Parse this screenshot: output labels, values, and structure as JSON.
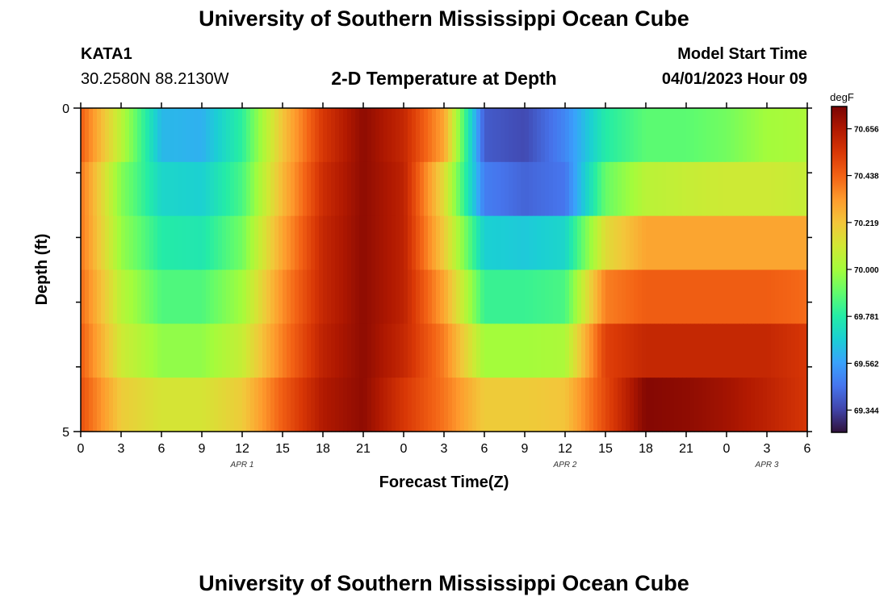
{
  "header": {
    "title": "University of Southern Mississippi Ocean Cube",
    "station": "KATA1",
    "coords": "30.2580N  88.2130W",
    "chart_title": "2-D Temperature at Depth",
    "model_start_label": "Model Start Time",
    "model_start_value": "04/01/2023 Hour 09"
  },
  "footer": {
    "title": "University of Southern Mississippi Ocean Cube"
  },
  "colorbar": {
    "unit": "degF",
    "ticks": [
      "70.656",
      "70.438",
      "70.219",
      "70.000",
      "69.781",
      "69.562",
      "69.344"
    ],
    "colors": [
      "#30123b",
      "#4145ab",
      "#4675ed",
      "#39a2fc",
      "#1bcfd4",
      "#24eca6",
      "#61fc6c",
      "#a4fc3b",
      "#d1e834",
      "#f3c63a",
      "#fe9b2d",
      "#f36315",
      "#d93806",
      "#b11901",
      "#7a0403"
    ]
  },
  "chart_data": {
    "type": "heatmap",
    "xlabel": "Forecast Time(Z)",
    "ylabel": "Depth (ft)",
    "x_tick_labels": [
      "0",
      "3",
      "6",
      "9",
      "12",
      "15",
      "18",
      "21",
      "0",
      "3",
      "6",
      "9",
      "12",
      "15",
      "18",
      "21",
      "0",
      "3",
      "6"
    ],
    "date_labels": [
      {
        "label": "APR 1",
        "hour": 12
      },
      {
        "label": "APR 2",
        "hour": 36
      },
      {
        "label": "APR 3",
        "hour": 51
      }
    ],
    "y_tick_labels": [
      "0",
      "5"
    ],
    "ylim": [
      0,
      5
    ],
    "value_range": [
      69.24,
      70.76
    ],
    "x_hours": [
      0,
      3,
      6,
      9,
      12,
      15,
      18,
      21,
      24,
      27,
      30,
      33,
      36,
      39,
      42,
      45,
      48,
      51,
      54
    ],
    "depth_rows": [
      {
        "depth": "0-1",
        "values": [
          70.45,
          70.05,
          69.62,
          69.6,
          69.8,
          70.22,
          70.55,
          70.72,
          70.6,
          70.3,
          69.4,
          69.36,
          69.5,
          69.78,
          69.88,
          69.88,
          69.92,
          70.0,
          70.02
        ]
      },
      {
        "depth": "1-2",
        "values": [
          70.4,
          69.95,
          69.7,
          69.68,
          69.85,
          70.25,
          70.58,
          70.72,
          70.62,
          70.15,
          69.48,
          69.42,
          69.46,
          69.9,
          70.05,
          70.08,
          70.1,
          70.1,
          70.08
        ]
      },
      {
        "depth": "2-3",
        "values": [
          70.4,
          69.98,
          69.78,
          69.76,
          69.92,
          70.3,
          70.6,
          70.72,
          70.62,
          70.2,
          69.68,
          69.66,
          69.7,
          70.15,
          70.3,
          70.3,
          70.3,
          70.3,
          70.3
        ]
      },
      {
        "depth": "3-4",
        "values": [
          70.42,
          70.05,
          69.86,
          69.86,
          70.0,
          70.35,
          70.6,
          70.72,
          70.62,
          70.3,
          69.82,
          69.82,
          69.85,
          70.38,
          70.45,
          70.45,
          70.45,
          70.45,
          70.42
        ]
      },
      {
        "depth": "4-5",
        "values": [
          70.45,
          70.1,
          69.97,
          69.97,
          70.08,
          70.38,
          70.62,
          70.72,
          70.6,
          70.38,
          70.0,
          70.0,
          70.02,
          70.52,
          70.6,
          70.6,
          70.6,
          70.6,
          70.55
        ]
      },
      {
        "depth": "5",
        "values": [
          70.48,
          70.2,
          70.12,
          70.12,
          70.2,
          70.45,
          70.65,
          70.72,
          70.55,
          70.4,
          70.2,
          70.2,
          70.22,
          70.5,
          70.74,
          70.72,
          70.68,
          70.62,
          70.55
        ]
      }
    ]
  }
}
